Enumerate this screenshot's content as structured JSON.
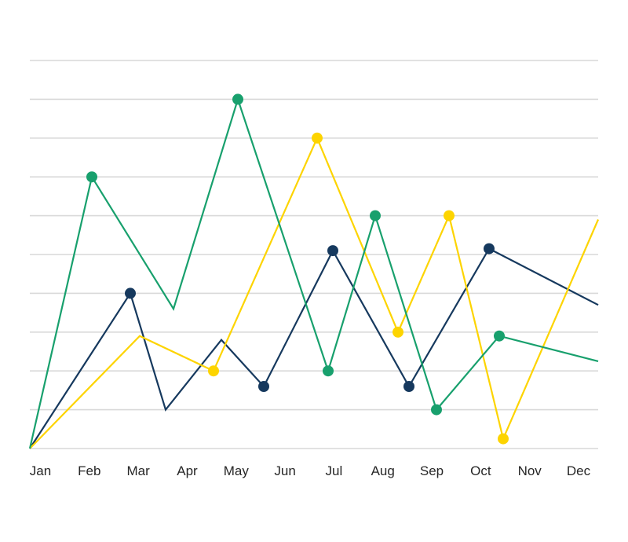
{
  "page": {
    "background_color": "#ffffff",
    "title": ""
  },
  "chart_data": {
    "type": "line",
    "title": "",
    "xlabel": "",
    "ylabel": "",
    "x_labels": [
      "Jan",
      "Feb",
      "Mar",
      "Apr",
      "May",
      "Jun",
      "Jul",
      "Aug",
      "Sep",
      "Oct",
      "Nov",
      "Dec"
    ],
    "y_axis": {
      "min": 0,
      "max": 10,
      "gridline_step": 1,
      "tick_labels_visible": false
    },
    "grid": {
      "show": true,
      "color": "#d9d9d9"
    },
    "legend": {
      "show": false
    },
    "text_color": "#262626",
    "marker_style": "filled-circle",
    "series": [
      {
        "name": "navy",
        "color": "#16395e",
        "points": [
          {
            "x": 0.0,
            "y": 0,
            "marker": false
          },
          {
            "x": 0.1768,
            "y": 4,
            "marker": true
          },
          {
            "x": 0.239,
            "y": 1,
            "marker": false
          },
          {
            "x": 0.337,
            "y": 2.8,
            "marker": false
          },
          {
            "x": 0.4116,
            "y": 1.6,
            "marker": true
          },
          {
            "x": 0.5332,
            "y": 5.1,
            "marker": true
          },
          {
            "x": 0.6671,
            "y": 1.6,
            "marker": true
          },
          {
            "x": 0.808,
            "y": 5.15,
            "marker": true
          },
          {
            "x": 1.0,
            "y": 3.7,
            "marker": false
          }
        ]
      },
      {
        "name": "yellow",
        "color": "#fdd400",
        "points": [
          {
            "x": 0.0,
            "y": 0,
            "marker": false
          },
          {
            "x": 0.1934,
            "y": 2.9,
            "marker": false
          },
          {
            "x": 0.3232,
            "y": 2,
            "marker": true
          },
          {
            "x": 0.5055,
            "y": 8,
            "marker": true
          },
          {
            "x": 0.6478,
            "y": 3,
            "marker": true
          },
          {
            "x": 0.7376,
            "y": 6,
            "marker": true
          },
          {
            "x": 0.8329,
            "y": 0.25,
            "marker": true
          },
          {
            "x": 1.0,
            "y": 5.9,
            "marker": false
          }
        ]
      },
      {
        "name": "green",
        "color": "#18a06d",
        "points": [
          {
            "x": 0.0,
            "y": 0,
            "marker": false
          },
          {
            "x": 0.1091,
            "y": 7,
            "marker": true
          },
          {
            "x": 0.2528,
            "y": 3.6,
            "marker": false
          },
          {
            "x": 0.366,
            "y": 9,
            "marker": true
          },
          {
            "x": 0.5249,
            "y": 2,
            "marker": true
          },
          {
            "x": 0.6077,
            "y": 6,
            "marker": true
          },
          {
            "x": 0.7155,
            "y": 1,
            "marker": true
          },
          {
            "x": 0.826,
            "y": 2.9,
            "marker": true
          },
          {
            "x": 1.0,
            "y": 2.25,
            "marker": false
          }
        ]
      }
    ]
  }
}
